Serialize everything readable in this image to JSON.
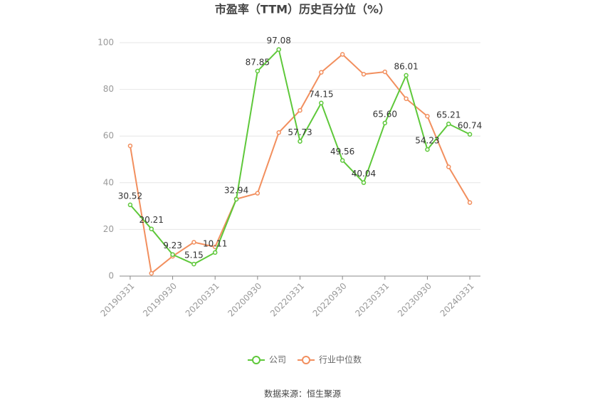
{
  "chart_data": {
    "type": "line",
    "title": "市盈率（TTM）历史百分位（%）",
    "categories": [
      "20190331",
      null,
      "20190930",
      null,
      "20200331",
      null,
      "20200930",
      null,
      "20220331",
      null,
      "20220930",
      null,
      "20230331",
      null,
      "20230930",
      null,
      "20240331"
    ],
    "series": [
      {
        "name": "公司",
        "color": "#5ec83a",
        "values": [
          30.52,
          20.21,
          9.23,
          5.15,
          10.11,
          32.94,
          87.85,
          97.08,
          57.73,
          74.15,
          49.56,
          40.04,
          65.6,
          86.01,
          54.23,
          65.21,
          60.74
        ],
        "value_labels": [
          "30.52",
          "20.21",
          "9.23",
          "5.15",
          "10.11",
          "32.94",
          "87.85",
          "97.08",
          "57.73",
          "74.15",
          "49.56",
          "40.04",
          "65.60",
          "86.01",
          "54.23",
          "65.21",
          "60.74"
        ]
      },
      {
        "name": "行业中位数",
        "color": "#f28f5e",
        "values": [
          55.8,
          1.2,
          8.5,
          14.5,
          12.5,
          33,
          35.5,
          61.5,
          71,
          87.3,
          95,
          86.5,
          87.5,
          76,
          68.5,
          46.8,
          31.5
        ]
      }
    ],
    "ylim": [
      0,
      100
    ],
    "yticks": [
      0,
      20,
      40,
      60,
      80,
      100
    ],
    "grid": true,
    "source": "数据来源：恒生聚源"
  }
}
